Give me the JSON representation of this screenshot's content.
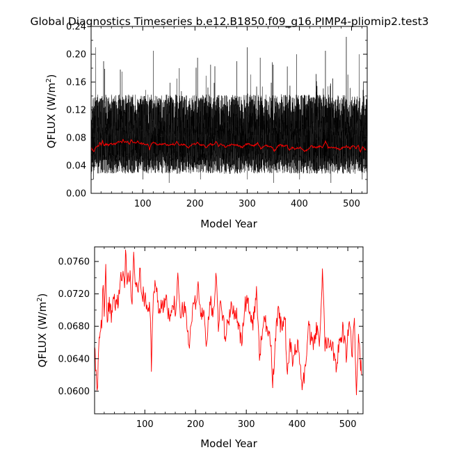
{
  "page": {
    "title": "Global Diagnostics Timeseries b.e12.B1850.f09_g16.PIMP4-pliomip2.test3"
  },
  "chart_data": [
    {
      "type": "line",
      "xlabel": "Model Year",
      "ylabel_main": "QFLUX (W/m",
      "ylabel_sup": "2",
      "ylabel_close": ")",
      "xlim": [
        1,
        530
      ],
      "ylim": [
        0.0,
        0.24
      ],
      "xticks": [
        100,
        200,
        300,
        400,
        500
      ],
      "xtick_labels": [
        "100",
        "200",
        "300",
        "400",
        "500"
      ],
      "yticks": [
        0.0,
        0.04,
        0.08,
        0.12,
        0.16,
        0.2,
        0.24
      ],
      "ytick_labels": [
        "0.00",
        "0.04",
        "0.08",
        "0.12",
        "0.16",
        "0.20",
        "0.24"
      ],
      "grid": false,
      "series": [
        {
          "kind": "monthly",
          "color": "#000000",
          "typical_range": [
            0.03,
            0.14
          ],
          "peak_values": [
            [
              10,
              0.21
            ],
            [
              25,
              0.19
            ],
            [
              60,
              0.175
            ],
            [
              120,
              0.205
            ],
            [
              170,
              0.18
            ],
            [
              205,
              0.195
            ],
            [
              230,
              0.185
            ],
            [
              280,
              0.19
            ],
            [
              300,
              0.21
            ],
            [
              325,
              0.195
            ],
            [
              350,
              0.185
            ],
            [
              395,
              0.2
            ],
            [
              450,
              0.205
            ],
            [
              490,
              0.225
            ],
            [
              515,
              0.2
            ]
          ],
          "min_values": [
            [
              5,
              0.02
            ],
            [
              100,
              0.02
            ],
            [
              150,
              0.015
            ],
            [
              210,
              0.02
            ],
            [
              300,
              0.02
            ],
            [
              350,
              0.015
            ],
            [
              400,
              0.02
            ],
            [
              460,
              0.015
            ],
            [
              520,
              0.02
            ]
          ]
        },
        {
          "kind": "annual",
          "color": "#ff0000",
          "values_ref": "chart_data.1.series.0.values"
        }
      ]
    },
    {
      "type": "line",
      "xlabel": "Model Year",
      "ylabel_main": "QFLUX (W/m",
      "ylabel_sup": "2",
      "ylabel_close": ")",
      "xlim": [
        1,
        530
      ],
      "ylim": [
        0.0572,
        0.0778
      ],
      "xticks": [
        100,
        200,
        300,
        400,
        500
      ],
      "xtick_labels": [
        "100",
        "200",
        "300",
        "400",
        "500"
      ],
      "yticks": [
        0.06,
        0.064,
        0.068,
        0.072,
        0.076
      ],
      "ytick_labels": [
        "0.0600",
        "0.0640",
        "0.0680",
        "0.0720",
        "0.0760"
      ],
      "grid": false,
      "series": [
        {
          "color": "#ff0000",
          "x_start": 1,
          "x_end": 527,
          "anchors": [
            [
              1,
              0.0655
            ],
            [
              3,
              0.0625
            ],
            [
              5,
              0.0615
            ],
            [
              7,
              0.0598
            ],
            [
              9,
              0.065
            ],
            [
              12,
              0.0665
            ],
            [
              15,
              0.0685
            ],
            [
              18,
              0.0735
            ],
            [
              20,
              0.07
            ],
            [
              23,
              0.0745
            ],
            [
              26,
              0.069
            ],
            [
              30,
              0.0705
            ],
            [
              35,
              0.069
            ],
            [
              40,
              0.0715
            ],
            [
              45,
              0.0705
            ],
            [
              50,
              0.0725
            ],
            [
              55,
              0.0745
            ],
            [
              60,
              0.0735
            ],
            [
              62,
              0.0772
            ],
            [
              65,
              0.0735
            ],
            [
              70,
              0.0745
            ],
            [
              75,
              0.071
            ],
            [
              78,
              0.0765
            ],
            [
              82,
              0.073
            ],
            [
              86,
              0.0725
            ],
            [
              90,
              0.0755
            ],
            [
              95,
              0.072
            ],
            [
              100,
              0.0715
            ],
            [
              105,
              0.0705
            ],
            [
              110,
              0.07
            ],
            [
              113,
              0.0635
            ],
            [
              117,
              0.0715
            ],
            [
              122,
              0.0735
            ],
            [
              128,
              0.07
            ],
            [
              135,
              0.0705
            ],
            [
              140,
              0.0715
            ],
            [
              148,
              0.069
            ],
            [
              155,
              0.0715
            ],
            [
              160,
              0.07
            ],
            [
              165,
              0.0735
            ],
            [
              170,
              0.069
            ],
            [
              175,
              0.07
            ],
            [
              180,
              0.0705
            ],
            [
              188,
              0.065
            ],
            [
              195,
              0.0715
            ],
            [
              200,
              0.0705
            ],
            [
              205,
              0.0735
            ],
            [
              210,
              0.069
            ],
            [
              218,
              0.0695
            ],
            [
              222,
              0.0655
            ],
            [
              228,
              0.071
            ],
            [
              235,
              0.0695
            ],
            [
              240,
              0.0745
            ],
            [
              245,
              0.0685
            ],
            [
              250,
              0.0715
            ],
            [
              258,
              0.0665
            ],
            [
              265,
              0.069
            ],
            [
              272,
              0.0705
            ],
            [
              280,
              0.0695
            ],
            [
              290,
              0.066
            ],
            [
              298,
              0.0705
            ],
            [
              305,
              0.071
            ],
            [
              312,
              0.068
            ],
            [
              320,
              0.0725
            ],
            [
              326,
              0.064
            ],
            [
              332,
              0.068
            ],
            [
              340,
              0.0685
            ],
            [
              348,
              0.0665
            ],
            [
              352,
              0.0605
            ],
            [
              357,
              0.0665
            ],
            [
              363,
              0.0695
            ],
            [
              370,
              0.0675
            ],
            [
              376,
              0.0695
            ],
            [
              381,
              0.0615
            ],
            [
              386,
              0.066
            ],
            [
              392,
              0.0635
            ],
            [
              398,
              0.066
            ],
            [
              405,
              0.0645
            ],
            [
              410,
              0.0605
            ],
            [
              416,
              0.0625
            ],
            [
              422,
              0.068
            ],
            [
              430,
              0.0655
            ],
            [
              438,
              0.0675
            ],
            [
              445,
              0.066
            ],
            [
              450,
              0.0755
            ],
            [
              455,
              0.066
            ],
            [
              462,
              0.0665
            ],
            [
              470,
              0.0655
            ],
            [
              477,
              0.0635
            ],
            [
              484,
              0.066
            ],
            [
              490,
              0.0675
            ],
            [
              497,
              0.0645
            ],
            [
              503,
              0.069
            ],
            [
              509,
              0.0645
            ],
            [
              513,
              0.0685
            ],
            [
              517,
              0.0605
            ],
            [
              521,
              0.0665
            ],
            [
              524,
              0.064
            ],
            [
              527,
              0.063
            ]
          ]
        }
      ]
    }
  ]
}
